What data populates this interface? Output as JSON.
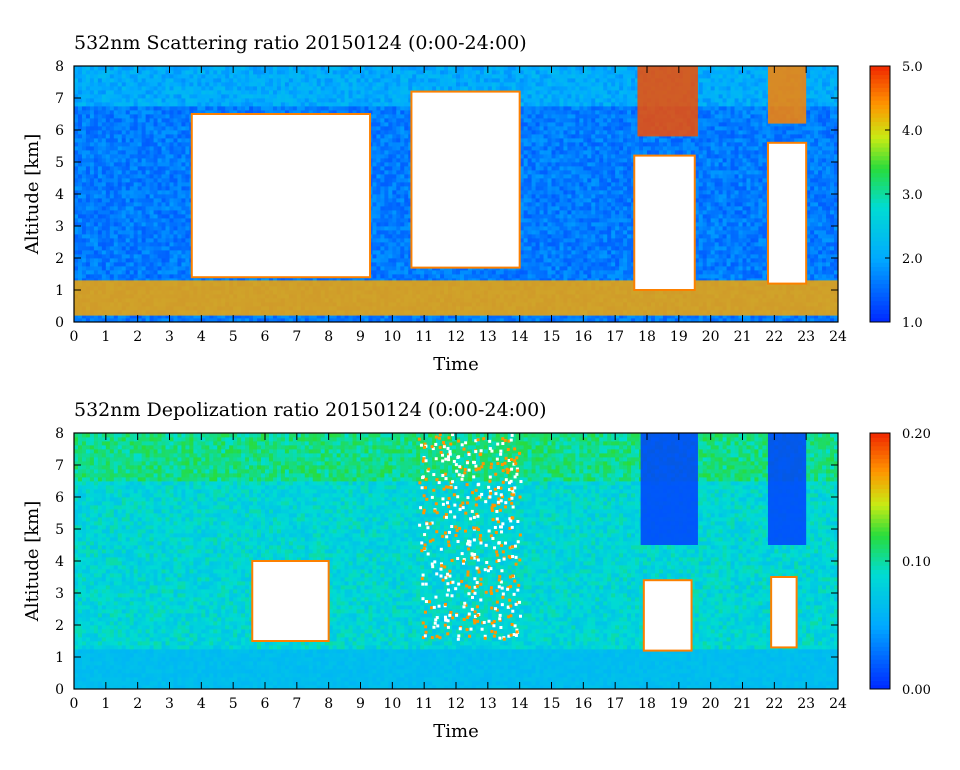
{
  "chart_data": [
    {
      "type": "heatmap",
      "title": "532nm Scattering ratio  20150124 (0:00-24:00)",
      "xlabel": "Time",
      "ylabel": "Altitude [km]",
      "xlim": [
        0,
        24
      ],
      "ylim": [
        0,
        8
      ],
      "x_ticks": [
        "0",
        "1",
        "2",
        "3",
        "4",
        "5",
        "6",
        "7",
        "8",
        "9",
        "10",
        "11",
        "12",
        "13",
        "14",
        "15",
        "16",
        "17",
        "18",
        "19",
        "20",
        "21",
        "22",
        "23",
        "24"
      ],
      "y_ticks": [
        "0",
        "1",
        "2",
        "3",
        "4",
        "5",
        "6",
        "7",
        "8"
      ],
      "colorbar": {
        "min": 1.0,
        "max": 5.0,
        "ticks": [
          "1.0",
          "2.0",
          "3.0",
          "4.0",
          "5.0"
        ]
      },
      "features": [
        {
          "kind": "boundary_layer",
          "t_start": 0,
          "t_end": 24,
          "alt_low": 0.2,
          "alt_high": 1.3,
          "value": 4.3
        },
        {
          "kind": "cloud_opaque",
          "t_start": 3.7,
          "t_end": 9.3,
          "alt_low": 1.4,
          "alt_high": 6.5
        },
        {
          "kind": "cloud_opaque",
          "t_start": 10.6,
          "t_end": 14.0,
          "alt_low": 1.7,
          "alt_high": 7.2
        },
        {
          "kind": "cloud_opaque",
          "t_start": 17.6,
          "t_end": 19.5,
          "alt_low": 1.0,
          "alt_high": 5.2
        },
        {
          "kind": "cloud_opaque",
          "t_start": 21.8,
          "t_end": 23.0,
          "alt_low": 1.2,
          "alt_high": 5.6
        },
        {
          "kind": "cirrus",
          "t_start": 17.7,
          "t_end": 19.6,
          "alt_low": 5.8,
          "alt_high": 8.0,
          "value": 4.8
        },
        {
          "kind": "cirrus",
          "t_start": 21.8,
          "t_end": 23.0,
          "alt_low": 6.2,
          "alt_high": 8.0,
          "value": 4.5
        }
      ]
    },
    {
      "type": "heatmap",
      "title": "532nm Depolization ratio  20150124 (0:00-24:00)",
      "xlabel": "Time",
      "ylabel": "Altitude [km]",
      "xlim": [
        0,
        24
      ],
      "ylim": [
        0,
        8
      ],
      "x_ticks": [
        "0",
        "1",
        "2",
        "3",
        "4",
        "5",
        "6",
        "7",
        "8",
        "9",
        "10",
        "11",
        "12",
        "13",
        "14",
        "15",
        "16",
        "17",
        "18",
        "19",
        "20",
        "21",
        "22",
        "23",
        "24"
      ],
      "y_ticks": [
        "0",
        "1",
        "2",
        "3",
        "4",
        "5",
        "6",
        "7",
        "8"
      ],
      "colorbar": {
        "min": 0.0,
        "max": 0.2,
        "ticks": [
          "0.00",
          "0.10",
          "0.20"
        ]
      },
      "features": [
        {
          "kind": "cloud_opaque",
          "t_start": 5.6,
          "t_end": 8.0,
          "alt_low": 1.5,
          "alt_high": 4.0
        },
        {
          "kind": "cloud_opaque",
          "t_start": 17.9,
          "t_end": 19.4,
          "alt_low": 1.2,
          "alt_high": 3.4
        },
        {
          "kind": "cloud_opaque",
          "t_start": 21.9,
          "t_end": 22.7,
          "alt_low": 1.3,
          "alt_high": 3.5
        },
        {
          "kind": "noisy_high_depol",
          "t_start": 10.8,
          "t_end": 14.0,
          "alt_low": 1.6,
          "alt_high": 8.0,
          "value": 0.17
        },
        {
          "kind": "low_depol_column",
          "t_start": 17.8,
          "t_end": 19.6,
          "alt_low": 4.5,
          "alt_high": 8.0,
          "value": 0.01
        },
        {
          "kind": "low_depol_column",
          "t_start": 21.8,
          "t_end": 23.0,
          "alt_low": 4.5,
          "alt_high": 8.0,
          "value": 0.01
        }
      ]
    }
  ]
}
